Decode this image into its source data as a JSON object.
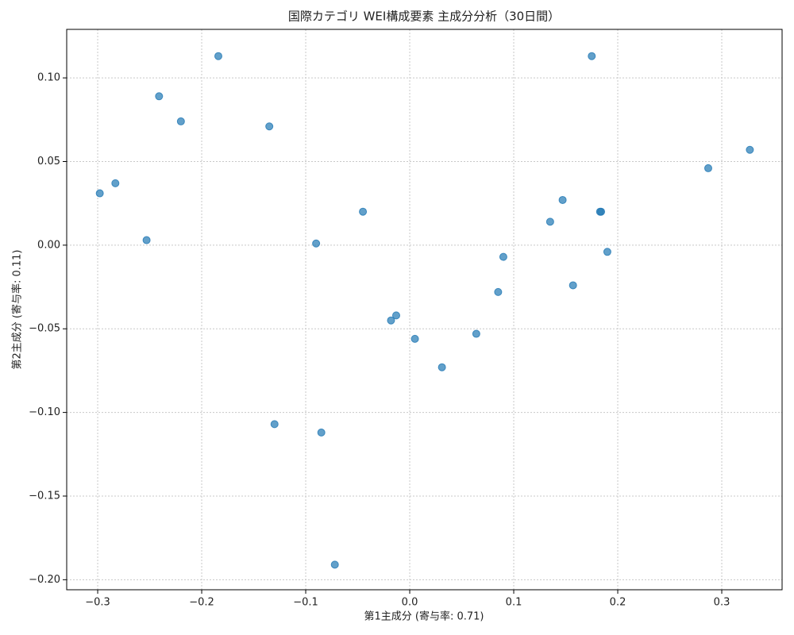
{
  "chart_data": {
    "type": "scatter",
    "title": "国際カテゴリ WEI構成要素 主成分分析（30日間）",
    "x_label": "第1主成分 (寄与率: 0.71)",
    "y_label": "第2主成分 (寄与率: 0.11)",
    "color": "#1f77b4",
    "grid": true,
    "xlim": [
      -0.3298,
      0.358
    ],
    "ylim": [
      -0.206,
      0.129
    ],
    "xticks": [
      {
        "value": -0.3,
        "label": "−0.3"
      },
      {
        "value": -0.2,
        "label": "−0.2"
      },
      {
        "value": -0.1,
        "label": "−0.1"
      },
      {
        "value": 0,
        "label": "0.0"
      },
      0.1,
      0.2,
      0.3
    ],
    "yticks": [
      {
        "value": -0.2,
        "label": "−0.20"
      },
      {
        "value": -0.15,
        "label": "−0.15"
      },
      {
        "value": -0.1,
        "label": "−0.10"
      },
      {
        "value": -0.05,
        "label": "−0.05"
      },
      {
        "value": 0,
        "label": "0.00"
      },
      {
        "value": 0.05,
        "label": "0.05"
      },
      {
        "value": 0.1,
        "label": "0.10"
      }
    ],
    "x": [
      -0.184,
      -0.241,
      -0.22,
      -0.135,
      -0.298,
      -0.283,
      -0.253,
      -0.045,
      -0.09,
      -0.018,
      -0.013,
      0.005,
      0.031,
      0.064,
      0.085,
      0.09,
      0.135,
      0.147,
      0.157,
      0.175,
      0.184,
      0.183,
      0.19,
      0.287,
      0.327,
      -0.13,
      -0.085,
      -0.072
    ],
    "values": [
      0.113,
      0.089,
      0.074,
      0.071,
      0.031,
      0.037,
      0.003,
      0.02,
      0.001,
      -0.045,
      -0.042,
      -0.056,
      -0.073,
      -0.053,
      -0.028,
      -0.007,
      0.014,
      0.027,
      -0.024,
      0.113,
      0.02,
      0.02,
      -0.004,
      0.046,
      0.057,
      -0.107,
      -0.112,
      -0.191
    ]
  }
}
